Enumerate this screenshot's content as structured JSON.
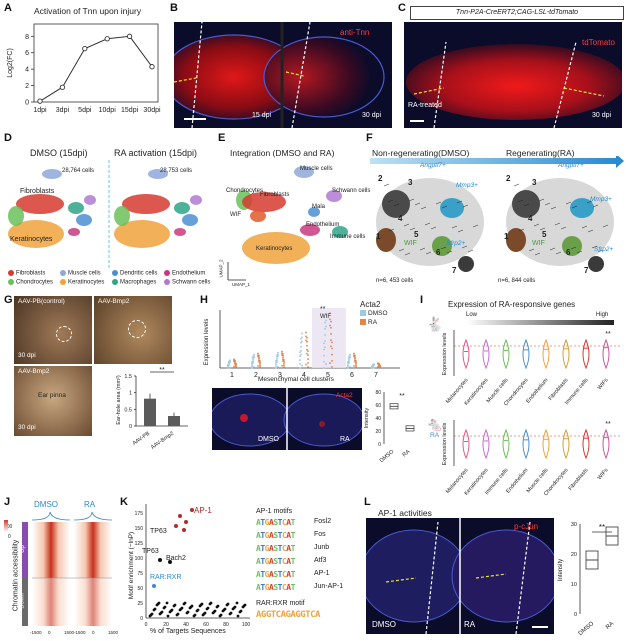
{
  "labels": {
    "A": "A",
    "B": "B",
    "C": "C",
    "D": "D",
    "E": "E",
    "F": "F",
    "G": "G",
    "H": "H",
    "I": "I",
    "J": "J",
    "K": "K",
    "L": "L"
  },
  "panelA": {
    "title": "Activation of Tnn upon injury",
    "chart_data": {
      "type": "line",
      "categories": [
        "1dpi",
        "3dpi",
        "5dpi",
        "10dpi",
        "15dpi",
        "30dpi"
      ],
      "values": [
        0.1,
        1.8,
        6.5,
        7.7,
        8.0,
        4.3
      ],
      "ylabel": "Log2(FC)",
      "yticks": [
        0,
        2,
        4,
        6,
        8
      ],
      "ylim": [
        0,
        9.5
      ]
    }
  },
  "panelB": {
    "stain": "anti-Tnn",
    "left": "15 dpi",
    "right": "30 dpi"
  },
  "panelC": {
    "header": "Tnn-P2A-CreERT2;CAG-LSL-tdTomato",
    "stain": "tdTomato",
    "treatment": "RA-treated",
    "time": "30 dpi"
  },
  "panelD": {
    "left_title": "DMSO (15dpi)",
    "right_title": "RA activation (15dpi)",
    "left_cells": "28,764 cells",
    "right_cells": "28,753 cells",
    "fibroblasts": "Fibroblasts",
    "keratinocytes": "Keratinocytes",
    "legend": [
      {
        "name": "Fibroblasts",
        "color": "#d63a2f"
      },
      {
        "name": "Muscle cells",
        "color": "#8fa8d8"
      },
      {
        "name": "Dendritic cells",
        "color": "#4c8fd1"
      },
      {
        "name": "Endothelium",
        "color": "#c83a80"
      },
      {
        "name": "Chondrocytes",
        "color": "#6cbf5a"
      },
      {
        "name": "Keratinocytes",
        "color": "#f0a23b"
      },
      {
        "name": "Macrophages",
        "color": "#2fa58a"
      },
      {
        "name": "Schwann cells",
        "color": "#b07ad1"
      }
    ]
  },
  "panelE": {
    "title": "Integration (DMSO and RA)",
    "clusters": [
      "Muscle cells",
      "Chondrocytes",
      "Fibroblasts",
      "Schwann cells",
      "Mala",
      "WIF",
      "Endothelium",
      "Immune cells",
      "Keratinocytes"
    ],
    "axis1": "UMAP_1",
    "axis2": "UMAP_2"
  },
  "panelF": {
    "left_title": "Non-regenerating(DMSO)",
    "right_title": "Regenerating(RA)",
    "left_cells": "n=6, 453 cells",
    "right_cells": "n=6, 844 cells",
    "markers": [
      "Angptl7+",
      "Mmp3+",
      "Sfrp2+",
      "WIF"
    ],
    "left_numbers": [
      "2",
      "3",
      "4",
      "5",
      "6",
      "1",
      "7"
    ],
    "right_numbers": [
      "2",
      "3",
      "4",
      "5",
      "6",
      "1",
      "7"
    ]
  },
  "panelG": {
    "top_left": "AAV-PB(control)",
    "top_right": "AAV-Bmp2",
    "bottom_left": "AAV-Bmp2",
    "pinna": "Ear pinna",
    "dpi1": "30 dpi",
    "dpi2": "30 dpi",
    "chart_data": {
      "type": "bar",
      "categories": [
        "AAV-PB",
        "AAV-Bmp2"
      ],
      "values": [
        0.82,
        0.3
      ],
      "errors": [
        0.15,
        0.1
      ],
      "ylabel": "Ear-hole area (mm²)",
      "yticks": [
        0,
        0.5,
        1.0,
        1.5
      ],
      "ylim": [
        0,
        1.5
      ],
      "significance": "**"
    }
  },
  "panelH": {
    "gene": "Acta2",
    "legend": [
      {
        "name": "DMSO",
        "color": "#9ec9e6"
      },
      {
        "name": "RA",
        "color": "#e0874e"
      }
    ],
    "ylabel": "Expression levels",
    "xlabel": "Mesenchymal cell clusters",
    "clusters": [
      "1",
      "2",
      "3",
      "4",
      "5",
      "6",
      "7"
    ],
    "wif": "WIF",
    "sig": "**",
    "micro_left": "DMSO",
    "micro_right": "RA",
    "stain": "Acta2",
    "box_chart": {
      "type": "box",
      "categories": [
        "DMSO",
        "RA"
      ],
      "medians": [
        58,
        24
      ],
      "ylabel": "Intensity",
      "yticks": [
        0,
        20,
        40,
        60,
        80
      ],
      "ylim": [
        0,
        80
      ],
      "significance": "**"
    }
  },
  "panelI": {
    "title": "Expression of RA-responsive genes",
    "low": "Low",
    "high": "High",
    "top_tag": "",
    "bottom_tag": "RA",
    "ylabel": "Expression levels",
    "cell_types": [
      "Melanocytes",
      "Keratinocytes",
      "Muscle cells",
      "Chondrocytes",
      "Endothelium",
      "Fibroblasts",
      "Immune cells",
      "WIFs"
    ],
    "cell_types_bottom": [
      "Melanocytes",
      "Keratinocytes",
      "Immune cells",
      "Endothelium",
      "Muscle cells",
      "Chondrocytes",
      "Fibroblasts",
      "WIFs"
    ],
    "sig": "**"
  },
  "panelJ": {
    "dmso": "DMSO",
    "ra": "RA",
    "ylabel": "Chromatin accessibility",
    "up": "Up",
    "down": "Down",
    "scale_max": "100",
    "scale_min": "0",
    "ticks": [
      "-1500",
      "0",
      "1500",
      "-1500",
      "0",
      "1500"
    ]
  },
  "panelK": {
    "ylabel": "Motif enrichment (−lnP)",
    "xlabel": "% of Targets Sequences",
    "ap1": "AP-1",
    "tp63a": "TP63",
    "tp63b": "TP63",
    "bach2": "Bach2",
    "rarrxr": "RAR:RXR",
    "xticks": [
      "0",
      "20",
      "40",
      "60",
      "80",
      "100"
    ],
    "yticks": [
      "0",
      "25",
      "50",
      "75",
      "100",
      "125",
      "150",
      "175"
    ],
    "ap1_title": "AP-1 motifs",
    "motifs": [
      "Fosl2",
      "Fos",
      "Junb",
      "Atf3",
      "AP-1",
      "Jun-AP-1"
    ],
    "motif_seqs": [
      "ATGASTCAT",
      "ATGASTCAT",
      "ATGASTCAT",
      "ATGASTCAT",
      "ATGASTCAT",
      "ATGASTCAT"
    ],
    "rar_title": "RAR:RXR motif",
    "rar_seq": "AGGTCAGAGGTCA"
  },
  "panelL": {
    "title": "AP-1 activities",
    "stain": "p-cJun",
    "left": "DMSO",
    "right": "RA",
    "box_chart": {
      "type": "box",
      "categories": [
        "DMSO",
        "RA"
      ],
      "medians": [
        18,
        26
      ],
      "ylabel": "Intensity",
      "yticks": [
        0,
        10,
        20,
        30
      ],
      "ylim": [
        0,
        30
      ],
      "significance": "**"
    }
  }
}
